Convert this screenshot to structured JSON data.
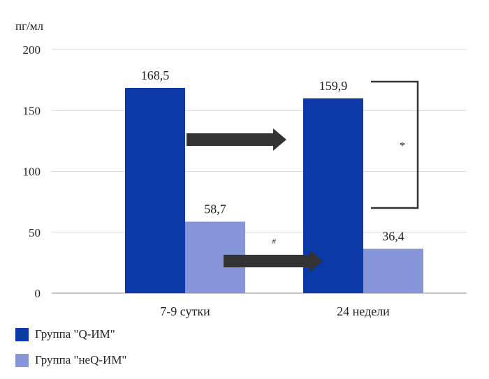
{
  "colors": {
    "series_1": "#0b3aa8",
    "series_2": "#8796d8",
    "arrow": "#333333",
    "grid": "#d9d9d9",
    "axis": "#8c8c8c"
  },
  "chart_data": {
    "type": "bar",
    "unit_label": "пг/мл",
    "categories": [
      "7-9 сутки",
      "24 недели"
    ],
    "ylim": [
      0,
      200
    ],
    "yticks": [
      0,
      50,
      100,
      150,
      200
    ],
    "grid": true,
    "legend_position": "bottom-left",
    "series": [
      {
        "name": "Группа \"Q-ИМ\"",
        "values": [
          168.5,
          159.9
        ],
        "labels": [
          "168,5",
          "159,9"
        ]
      },
      {
        "name": "Группа \"неQ-ИМ\"",
        "values": [
          58.7,
          36.4
        ],
        "labels": [
          "58,7",
          "36,4"
        ]
      }
    ],
    "annotations": {
      "bracket_marker": "*",
      "arrow_marker": "#"
    }
  }
}
